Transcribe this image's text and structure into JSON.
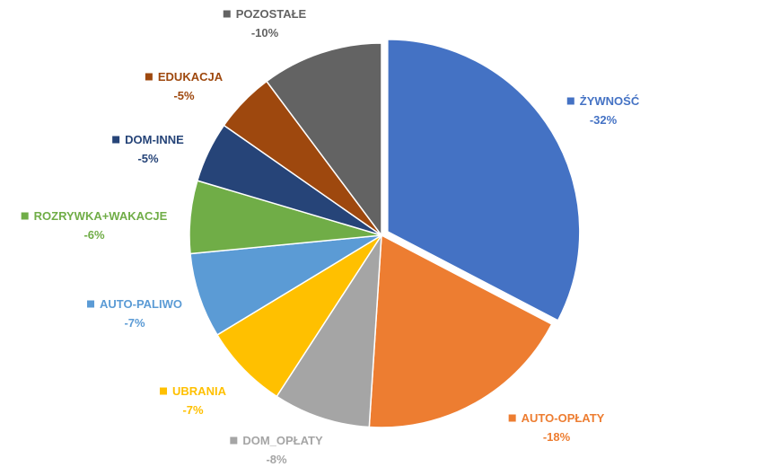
{
  "chart_data": {
    "type": "pie",
    "title": "",
    "slices": [
      {
        "label": "ŻYWNOŚĆ",
        "value_label": "-32%",
        "value": 32,
        "color": "#4472C4",
        "exploded": true
      },
      {
        "label": "AUTO-OPŁATY",
        "value_label": "-18%",
        "value": 18,
        "color": "#ED7D31",
        "exploded": false
      },
      {
        "label": "DOM_OPŁATY",
        "value_label": "-8%",
        "value": 8,
        "color": "#A5A5A5",
        "exploded": false
      },
      {
        "label": "UBRANIA",
        "value_label": "-7%",
        "value": 7,
        "color": "#FFC000",
        "exploded": false
      },
      {
        "label": "AUTO-PALIWO",
        "value_label": "-7%",
        "value": 7,
        "color": "#5B9BD5",
        "exploded": false
      },
      {
        "label": "ROZRYWKA+WAKACJE",
        "value_label": "-6%",
        "value": 6,
        "color": "#70AD47",
        "exploded": false
      },
      {
        "label": "DOM-INNE",
        "value_label": "-5%",
        "value": 5,
        "color": "#264478",
        "exploded": false
      },
      {
        "label": "EDUKACJA",
        "value_label": "-5%",
        "value": 5,
        "color": "#9E480E",
        "exploded": false
      },
      {
        "label": "POZOSTAŁE",
        "value_label": "-10%",
        "value": 10,
        "color": "#636363",
        "exploded": false
      }
    ],
    "legend": "none",
    "data_labels": "outside"
  }
}
